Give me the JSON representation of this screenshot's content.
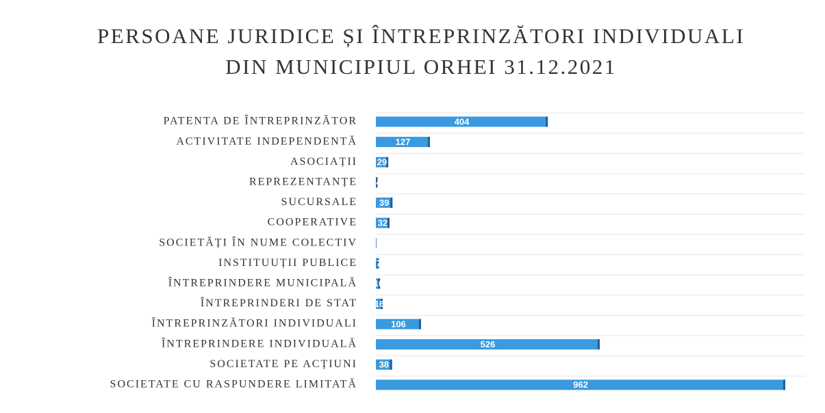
{
  "chart_data": {
    "type": "bar",
    "orientation": "horizontal",
    "title": "PERSOANE JURIDICE ȘI ÎNTREPRINZĂTORI INDIVIDUALI DIN MUNICIPIUL ORHEI 31.12.2021",
    "categories": [
      "PATENTA DE ÎNTREPRINZĂTOR",
      "ACTIVITATE INDEPENDENTĂ",
      "ASOCIAȚII",
      "REPREZENTANȚE",
      "SUCURSALE",
      "COOPERATIVE",
      "SOCIETĂȚI ÎN NUME COLECTIV",
      "INSTITUUȚII PUBLICE",
      "ÎNTREPRINDERE MUNICIPALĂ",
      "ÎNTREPRINDERI DE STAT",
      "ÎNTREPRINZĂTORI INDIVIDUALI",
      "ÎNTREPRINDERE INDIVIDUALĂ",
      "SOCIETATE PE ACȚIUNI",
      "SOCIETATE CU RASPUNDERE LIMITATĂ"
    ],
    "values": [
      404,
      127,
      29,
      4,
      39,
      32,
      1,
      7,
      10,
      16,
      106,
      526,
      38,
      962
    ],
    "color": "#3a9ae0",
    "grid": true
  }
}
